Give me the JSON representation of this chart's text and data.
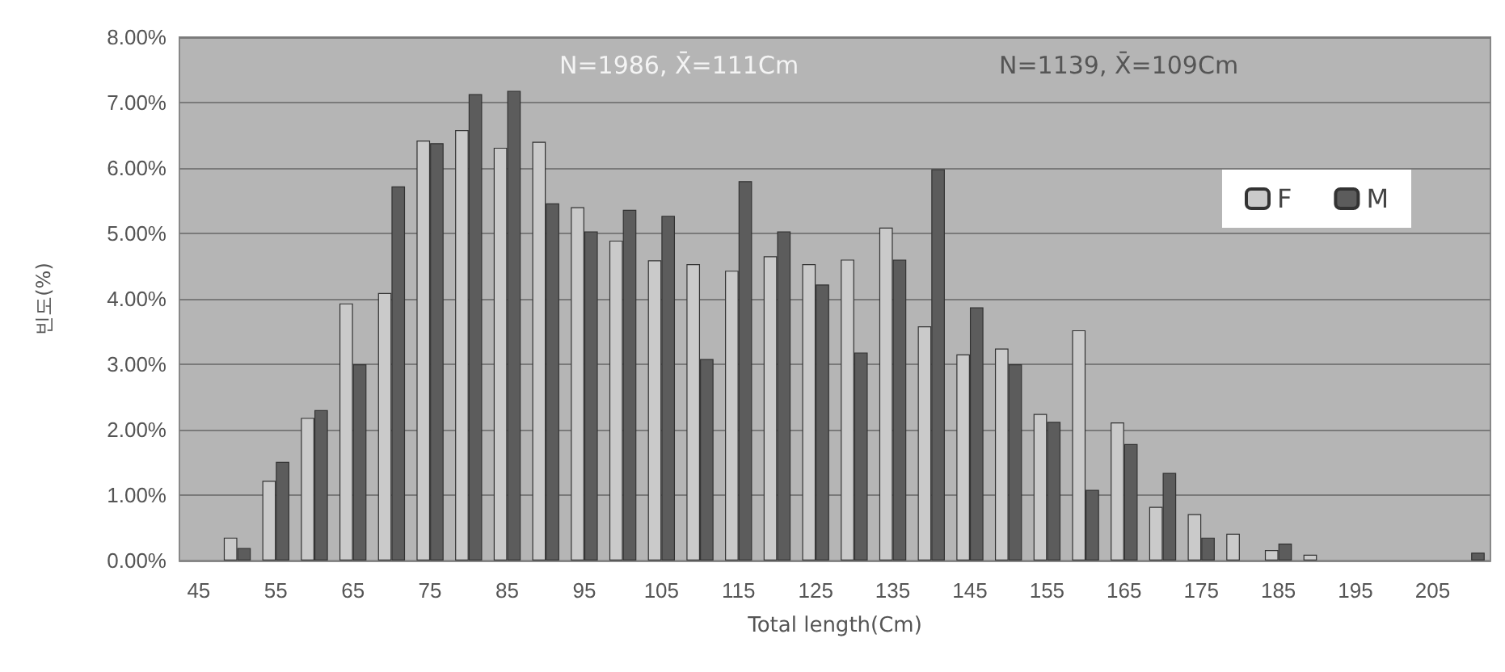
{
  "chart_data": {
    "type": "bar",
    "xlabel": "Total length(Cm)",
    "ylabel": "빈도(%)",
    "categories": [
      "45",
      null,
      "55",
      null,
      "65",
      null,
      "75",
      null,
      "85",
      null,
      "95",
      null,
      "105",
      null,
      "115",
      null,
      "125",
      null,
      "135",
      null,
      "145",
      null,
      "155",
      null,
      "165",
      null,
      "175",
      null,
      "185",
      null,
      "195",
      null,
      "205",
      null
    ],
    "series": [
      {
        "name": "F",
        "color": "#cacaca",
        "values": [
          null,
          0.35,
          1.22,
          2.18,
          3.93,
          4.09,
          6.42,
          6.58,
          6.31,
          6.4,
          5.4,
          4.89,
          4.59,
          4.53,
          4.43,
          4.65,
          4.53,
          4.6,
          5.09,
          3.58,
          3.15,
          3.24,
          2.24,
          3.52,
          2.11,
          0.82,
          0.71,
          0.41,
          0.16,
          0.09,
          null,
          null,
          null,
          null
        ]
      },
      {
        "name": "M",
        "color": "#5c5c5c",
        "values": [
          null,
          0.19,
          1.51,
          2.3,
          3.0,
          5.72,
          6.38,
          7.13,
          7.18,
          5.46,
          5.03,
          5.36,
          5.27,
          3.08,
          5.8,
          5.03,
          4.22,
          3.18,
          4.6,
          5.98,
          3.87,
          3.0,
          2.12,
          1.08,
          1.78,
          1.34,
          0.35,
          null,
          0.26,
          null,
          null,
          null,
          null,
          0.12
        ]
      }
    ],
    "ylim": [
      0,
      8
    ],
    "yticks": [
      {
        "value": 0,
        "label": "0.00%"
      },
      {
        "value": 1,
        "label": "1.00%"
      },
      {
        "value": 2,
        "label": "2.00%"
      },
      {
        "value": 3,
        "label": "3.00%"
      },
      {
        "value": 4,
        "label": "4.00%"
      },
      {
        "value": 5,
        "label": "5.00%"
      },
      {
        "value": 6,
        "label": "6.00%"
      },
      {
        "value": 7,
        "label": "7.00%"
      },
      {
        "value": 8,
        "label": "8.00%"
      }
    ],
    "grid": "y",
    "legend": "top right",
    "annotations": [
      "N=1986, X̄=111Cm",
      "N=1139, X̄=109Cm"
    ]
  }
}
